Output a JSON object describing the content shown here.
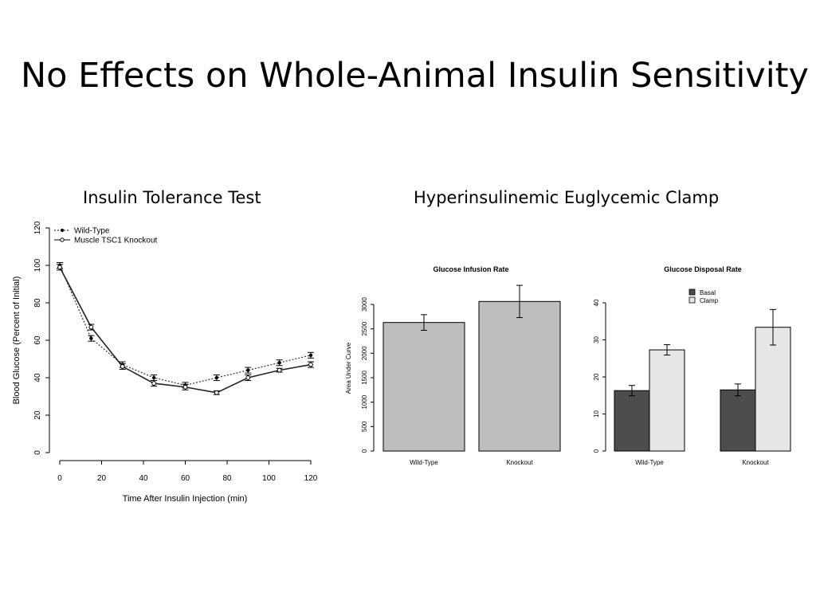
{
  "slide_title": "No Effects on Whole-Animal Insulin Sensitivity",
  "section_titles": {
    "left": "Insulin Tolerance Test",
    "right": "Hyperinsulinemic Euglycemic Clamp"
  },
  "chart_data": [
    {
      "type": "line",
      "title": "Insulin Tolerance Test",
      "xlabel": "Time After Insulin Injection (min)",
      "ylabel": "Blood Glucose (Percent of Initial)",
      "xlim": [
        0,
        120
      ],
      "ylim": [
        0,
        120
      ],
      "xticks": [
        0,
        20,
        40,
        60,
        80,
        100,
        120
      ],
      "yticks": [
        0,
        20,
        40,
        60,
        80,
        100,
        120
      ],
      "grid": false,
      "legend": "top-left",
      "x": [
        0,
        15,
        30,
        45,
        60,
        75,
        90,
        105,
        120
      ],
      "series": [
        {
          "name": "Wild-Type",
          "style": "dotted",
          "marker": "filled-circle",
          "values": [
            100,
            61,
            47,
            40,
            36,
            40,
            44,
            48,
            52
          ],
          "errors": [
            1.5,
            1.5,
            1.5,
            1.5,
            1.5,
            1.5,
            1.5,
            1.5,
            1.5
          ]
        },
        {
          "name": "Muscle TSC1 Knockout",
          "style": "solid",
          "marker": "open-circle",
          "values": [
            99,
            67,
            46,
            37,
            35,
            32,
            40,
            44,
            47
          ],
          "errors": [
            1.5,
            1.5,
            1.5,
            1.5,
            1.5,
            1.0,
            1.5,
            1.0,
            1.5
          ]
        }
      ]
    },
    {
      "type": "bar",
      "title": "Glucose Infusion Rate",
      "ylabel": "Area Under Curve",
      "ylim": [
        0,
        3000
      ],
      "yticks": [
        0,
        500,
        1000,
        1500,
        2000,
        2500,
        3000
      ],
      "categories": [
        "Wild-Type",
        "Knockout"
      ],
      "values": [
        2630,
        3060
      ],
      "errors": [
        160,
        330
      ],
      "color": "#bebebe"
    },
    {
      "type": "bar",
      "title": "Glucose Disposal Rate",
      "ylim": [
        0,
        40
      ],
      "yticks": [
        0,
        10,
        20,
        30,
        40
      ],
      "legend": "top-center",
      "categories": [
        "Wild-Type",
        "Knockout"
      ],
      "series": [
        {
          "name": "Basal",
          "color": "#4d4d4d",
          "values": [
            16.3,
            16.5
          ],
          "errors": [
            1.4,
            1.6
          ]
        },
        {
          "name": "Clamp",
          "color": "#e6e6e6",
          "values": [
            27.3,
            33.4
          ],
          "errors": [
            1.4,
            4.8
          ]
        }
      ]
    }
  ]
}
